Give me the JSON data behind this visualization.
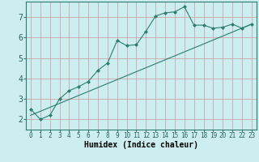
{
  "xlabel": "Humidex (Indice chaleur)",
  "ylabel": "",
  "background_color": "#cceef0",
  "grid_color_major": "#cc9999",
  "grid_color_minor": "#ddbbbb",
  "line_color": "#2e7d6e",
  "x_data": [
    0,
    1,
    2,
    3,
    4,
    5,
    6,
    7,
    8,
    9,
    10,
    11,
    12,
    13,
    14,
    15,
    16,
    17,
    18,
    19,
    20,
    21,
    22,
    23
  ],
  "y_data": [
    2.5,
    2.0,
    2.2,
    3.0,
    3.4,
    3.6,
    3.85,
    4.4,
    4.75,
    5.85,
    5.6,
    5.65,
    6.3,
    7.05,
    7.2,
    7.25,
    7.5,
    6.6,
    6.6,
    6.45,
    6.5,
    6.65,
    6.45,
    6.65
  ],
  "trend_x": [
    0,
    23
  ],
  "trend_y": [
    2.2,
    6.65
  ],
  "xlim": [
    -0.5,
    23.5
  ],
  "ylim": [
    1.5,
    7.75
  ],
  "yticks": [
    2,
    3,
    4,
    5,
    6,
    7
  ],
  "xticks": [
    0,
    1,
    2,
    3,
    4,
    5,
    6,
    7,
    8,
    9,
    10,
    11,
    12,
    13,
    14,
    15,
    16,
    17,
    18,
    19,
    20,
    21,
    22,
    23
  ],
  "xlabel_fontsize": 7,
  "ytick_fontsize": 7,
  "xtick_fontsize": 5.5
}
